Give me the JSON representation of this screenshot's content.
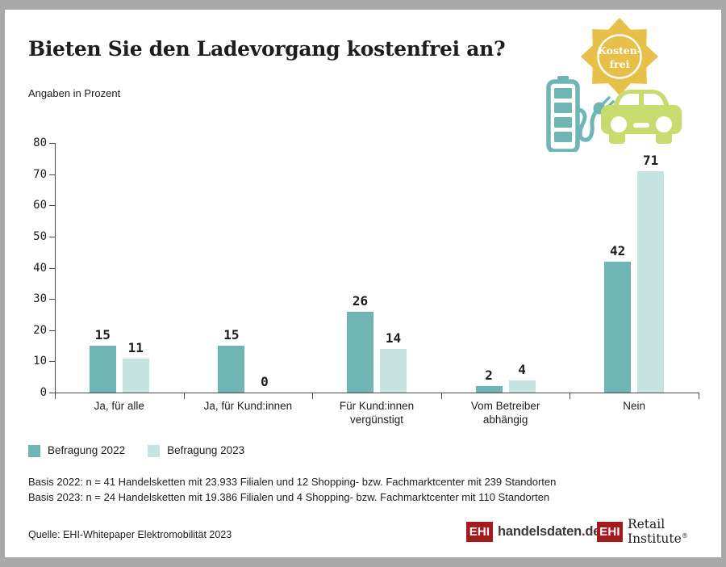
{
  "page": {
    "frame_color": "#A9A9A9",
    "background": "#FFFFFF",
    "text_color": "#1D1D1B"
  },
  "header": {
    "title": "Bieten Sie den Ladevorgang kostenfrei an?",
    "subtitle": "Angaben in Prozent"
  },
  "decoration": {
    "badge_line1": "Kosten-",
    "badge_line2": "frei",
    "sun_color": "#E7C04A",
    "battery_color": "#6FB5B6",
    "car_color": "#C8DB6E"
  },
  "chart_data": {
    "type": "bar",
    "title": "Bieten Sie den Ladevorgang kostenfrei an?",
    "unit": "Prozent",
    "categories": [
      "Ja, für alle",
      "Ja, für Kund:innen",
      "Für Kund:innen\nvergünstigt",
      "Vom Betreiber\nabhängig",
      "Nein"
    ],
    "series": [
      {
        "name": "Befragung 2022",
        "color": "#6FB5B6",
        "values": [
          15,
          15,
          26,
          2,
          42
        ]
      },
      {
        "name": "Befragung 2023",
        "color": "#C6E3E2",
        "values": [
          11,
          0,
          14,
          4,
          71
        ]
      }
    ],
    "ylim": [
      0,
      80
    ],
    "ytick_step": 10,
    "grid": false,
    "value_labels": true,
    "legend_position": "bottom-left"
  },
  "footnotes": {
    "basis_2022": "Basis 2022: n = 41 Handelsketten mit 23.933 Filialen und 12 Shopping- bzw. Fachmarktcenter mit 239 Standorten",
    "basis_2023": "Basis 2023: n = 24 Handelsketten mit 19.386 Filialen und 4 Shopping- bzw. Fachmarktcenter mit 110 Standorten",
    "source": "Quelle: EHI-Whitepaper Elektromobilität 2023"
  },
  "logos": {
    "ehi_box_color": "#A6191D",
    "handelsdaten": {
      "prefix": "EHI",
      "name": "handelsdaten",
      "dot": ".",
      "tld": "de"
    },
    "retail": {
      "prefix": "EHI",
      "text": "Retail Institute",
      "registered": "®"
    }
  }
}
